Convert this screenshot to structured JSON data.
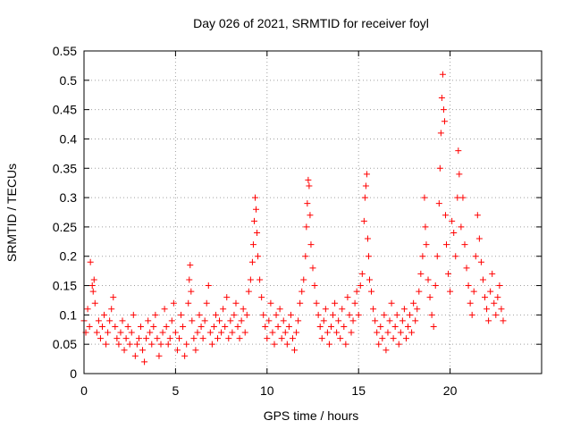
{
  "chart_data": {
    "type": "scatter",
    "title": "Day 026 of 2021, SRMTID for receiver foyl",
    "xlabel": "GPS time / hours",
    "ylabel": "SRMTID / TECUs",
    "xlim": [
      0,
      25
    ],
    "ylim": [
      0,
      0.55
    ],
    "x_ticks": [
      0,
      5,
      10,
      15,
      20
    ],
    "x_tick_labels": [
      "0",
      "5",
      "10",
      "15",
      "20"
    ],
    "y_ticks": [
      0,
      0.05,
      0.1,
      0.15,
      0.2,
      0.25,
      0.3,
      0.35,
      0.4,
      0.45,
      0.5,
      0.55
    ],
    "y_tick_labels": [
      "0",
      "0.05",
      "0.1",
      "0.15",
      "0.2",
      "0.25",
      "0.3",
      "0.35",
      "0.4",
      "0.45",
      "0.5",
      "0.55"
    ],
    "grid": true,
    "marker": "plus",
    "color": "#ff0000",
    "series": [
      {
        "name": "SRMTID",
        "points": [
          [
            0.0,
            0.09
          ],
          [
            0.1,
            0.07
          ],
          [
            0.2,
            0.11
          ],
          [
            0.3,
            0.08
          ],
          [
            0.35,
            0.19
          ],
          [
            0.45,
            0.15
          ],
          [
            0.5,
            0.14
          ],
          [
            0.55,
            0.16
          ],
          [
            0.6,
            0.12
          ],
          [
            0.7,
            0.07
          ],
          [
            0.8,
            0.09
          ],
          [
            0.9,
            0.06
          ],
          [
            1.0,
            0.08
          ],
          [
            1.1,
            0.1
          ],
          [
            1.2,
            0.05
          ],
          [
            1.3,
            0.07
          ],
          [
            1.4,
            0.09
          ],
          [
            1.5,
            0.11
          ],
          [
            1.6,
            0.13
          ],
          [
            1.7,
            0.08
          ],
          [
            1.8,
            0.06
          ],
          [
            1.9,
            0.05
          ],
          [
            2.0,
            0.07
          ],
          [
            2.1,
            0.09
          ],
          [
            2.2,
            0.04
          ],
          [
            2.3,
            0.06
          ],
          [
            2.4,
            0.08
          ],
          [
            2.5,
            0.05
          ],
          [
            2.6,
            0.07
          ],
          [
            2.7,
            0.1
          ],
          [
            2.8,
            0.03
          ],
          [
            2.9,
            0.05
          ],
          [
            3.0,
            0.06
          ],
          [
            3.1,
            0.08
          ],
          [
            3.2,
            0.04
          ],
          [
            3.3,
            0.02
          ],
          [
            3.4,
            0.06
          ],
          [
            3.5,
            0.09
          ],
          [
            3.6,
            0.07
          ],
          [
            3.7,
            0.05
          ],
          [
            3.8,
            0.08
          ],
          [
            3.9,
            0.1
          ],
          [
            4.0,
            0.06
          ],
          [
            4.1,
            0.03
          ],
          [
            4.2,
            0.05
          ],
          [
            4.3,
            0.07
          ],
          [
            4.4,
            0.11
          ],
          [
            4.5,
            0.08
          ],
          [
            4.6,
            0.05
          ],
          [
            4.7,
            0.06
          ],
          [
            4.8,
            0.09
          ],
          [
            4.9,
            0.12
          ],
          [
            5.0,
            0.07
          ],
          [
            5.1,
            0.04
          ],
          [
            5.2,
            0.06
          ],
          [
            5.3,
            0.1
          ],
          [
            5.4,
            0.08
          ],
          [
            5.5,
            0.03
          ],
          [
            5.6,
            0.05
          ],
          [
            5.7,
            0.12
          ],
          [
            5.75,
            0.16
          ],
          [
            5.8,
            0.185
          ],
          [
            5.85,
            0.14
          ],
          [
            5.9,
            0.09
          ],
          [
            6.0,
            0.06
          ],
          [
            6.1,
            0.04
          ],
          [
            6.2,
            0.07
          ],
          [
            6.3,
            0.1
          ],
          [
            6.4,
            0.08
          ],
          [
            6.5,
            0.06
          ],
          [
            6.6,
            0.09
          ],
          [
            6.7,
            0.12
          ],
          [
            6.8,
            0.15
          ],
          [
            6.9,
            0.07
          ],
          [
            7.0,
            0.05
          ],
          [
            7.1,
            0.08
          ],
          [
            7.2,
            0.1
          ],
          [
            7.3,
            0.06
          ],
          [
            7.4,
            0.09
          ],
          [
            7.5,
            0.07
          ],
          [
            7.6,
            0.11
          ],
          [
            7.7,
            0.08
          ],
          [
            7.8,
            0.13
          ],
          [
            7.9,
            0.06
          ],
          [
            8.0,
            0.09
          ],
          [
            8.1,
            0.07
          ],
          [
            8.2,
            0.1
          ],
          [
            8.3,
            0.12
          ],
          [
            8.4,
            0.08
          ],
          [
            8.5,
            0.06
          ],
          [
            8.6,
            0.09
          ],
          [
            8.7,
            0.11
          ],
          [
            8.8,
            0.07
          ],
          [
            8.9,
            0.1
          ],
          [
            9.0,
            0.14
          ],
          [
            9.1,
            0.16
          ],
          [
            9.2,
            0.19
          ],
          [
            9.25,
            0.22
          ],
          [
            9.3,
            0.26
          ],
          [
            9.35,
            0.3
          ],
          [
            9.4,
            0.28
          ],
          [
            9.45,
            0.24
          ],
          [
            9.5,
            0.2
          ],
          [
            9.6,
            0.16
          ],
          [
            9.7,
            0.13
          ],
          [
            9.8,
            0.1
          ],
          [
            9.9,
            0.08
          ],
          [
            10.0,
            0.06
          ],
          [
            10.1,
            0.09
          ],
          [
            10.2,
            0.12
          ],
          [
            10.3,
            0.07
          ],
          [
            10.4,
            0.05
          ],
          [
            10.5,
            0.1
          ],
          [
            10.6,
            0.08
          ],
          [
            10.7,
            0.11
          ],
          [
            10.8,
            0.06
          ],
          [
            10.9,
            0.09
          ],
          [
            11.0,
            0.07
          ],
          [
            11.1,
            0.05
          ],
          [
            11.2,
            0.08
          ],
          [
            11.3,
            0.1
          ],
          [
            11.4,
            0.06
          ],
          [
            11.5,
            0.04
          ],
          [
            11.6,
            0.07
          ],
          [
            11.7,
            0.09
          ],
          [
            11.8,
            0.12
          ],
          [
            11.9,
            0.14
          ],
          [
            12.0,
            0.16
          ],
          [
            12.1,
            0.2
          ],
          [
            12.15,
            0.25
          ],
          [
            12.2,
            0.29
          ],
          [
            12.25,
            0.33
          ],
          [
            12.3,
            0.32
          ],
          [
            12.35,
            0.27
          ],
          [
            12.4,
            0.22
          ],
          [
            12.5,
            0.18
          ],
          [
            12.6,
            0.15
          ],
          [
            12.7,
            0.12
          ],
          [
            12.8,
            0.1
          ],
          [
            12.9,
            0.08
          ],
          [
            13.0,
            0.06
          ],
          [
            13.1,
            0.09
          ],
          [
            13.2,
            0.11
          ],
          [
            13.3,
            0.07
          ],
          [
            13.4,
            0.05
          ],
          [
            13.5,
            0.08
          ],
          [
            13.6,
            0.1
          ],
          [
            13.7,
            0.12
          ],
          [
            13.8,
            0.07
          ],
          [
            13.9,
            0.09
          ],
          [
            14.0,
            0.06
          ],
          [
            14.1,
            0.11
          ],
          [
            14.2,
            0.08
          ],
          [
            14.3,
            0.05
          ],
          [
            14.4,
            0.13
          ],
          [
            14.5,
            0.1
          ],
          [
            14.6,
            0.07
          ],
          [
            14.7,
            0.09
          ],
          [
            14.8,
            0.12
          ],
          [
            14.9,
            0.14
          ],
          [
            15.0,
            0.1
          ],
          [
            15.1,
            0.15
          ],
          [
            15.2,
            0.17
          ],
          [
            15.3,
            0.26
          ],
          [
            15.35,
            0.3
          ],
          [
            15.4,
            0.32
          ],
          [
            15.45,
            0.34
          ],
          [
            15.5,
            0.23
          ],
          [
            15.55,
            0.2
          ],
          [
            15.6,
            0.16
          ],
          [
            15.7,
            0.14
          ],
          [
            15.8,
            0.11
          ],
          [
            15.9,
            0.09
          ],
          [
            16.0,
            0.07
          ],
          [
            16.1,
            0.05
          ],
          [
            16.2,
            0.08
          ],
          [
            16.3,
            0.06
          ],
          [
            16.4,
            0.1
          ],
          [
            16.5,
            0.04
          ],
          [
            16.6,
            0.07
          ],
          [
            16.7,
            0.09
          ],
          [
            16.8,
            0.12
          ],
          [
            16.9,
            0.06
          ],
          [
            17.0,
            0.08
          ],
          [
            17.1,
            0.1
          ],
          [
            17.2,
            0.05
          ],
          [
            17.3,
            0.07
          ],
          [
            17.4,
            0.09
          ],
          [
            17.5,
            0.11
          ],
          [
            17.6,
            0.06
          ],
          [
            17.7,
            0.08
          ],
          [
            17.8,
            0.1
          ],
          [
            17.9,
            0.07
          ],
          [
            18.0,
            0.12
          ],
          [
            18.1,
            0.09
          ],
          [
            18.2,
            0.11
          ],
          [
            18.3,
            0.14
          ],
          [
            18.4,
            0.17
          ],
          [
            18.5,
            0.2
          ],
          [
            18.6,
            0.3
          ],
          [
            18.65,
            0.25
          ],
          [
            18.7,
            0.22
          ],
          [
            18.8,
            0.16
          ],
          [
            18.9,
            0.13
          ],
          [
            19.0,
            0.1
          ],
          [
            19.1,
            0.08
          ],
          [
            19.2,
            0.15
          ],
          [
            19.3,
            0.2
          ],
          [
            19.4,
            0.29
          ],
          [
            19.45,
            0.35
          ],
          [
            19.5,
            0.41
          ],
          [
            19.55,
            0.47
          ],
          [
            19.6,
            0.51
          ],
          [
            19.65,
            0.45
          ],
          [
            19.7,
            0.43
          ],
          [
            19.75,
            0.27
          ],
          [
            19.8,
            0.22
          ],
          [
            19.9,
            0.17
          ],
          [
            20.0,
            0.14
          ],
          [
            20.1,
            0.26
          ],
          [
            20.2,
            0.24
          ],
          [
            20.3,
            0.2
          ],
          [
            20.4,
            0.3
          ],
          [
            20.45,
            0.38
          ],
          [
            20.5,
            0.34
          ],
          [
            20.6,
            0.25
          ],
          [
            20.7,
            0.3
          ],
          [
            20.8,
            0.22
          ],
          [
            20.9,
            0.18
          ],
          [
            21.0,
            0.15
          ],
          [
            21.1,
            0.12
          ],
          [
            21.2,
            0.1
          ],
          [
            21.3,
            0.14
          ],
          [
            21.4,
            0.2
          ],
          [
            21.5,
            0.27
          ],
          [
            21.6,
            0.23
          ],
          [
            21.7,
            0.19
          ],
          [
            21.8,
            0.16
          ],
          [
            21.9,
            0.13
          ],
          [
            22.0,
            0.11
          ],
          [
            22.1,
            0.09
          ],
          [
            22.2,
            0.14
          ],
          [
            22.3,
            0.17
          ],
          [
            22.4,
            0.12
          ],
          [
            22.5,
            0.1
          ],
          [
            22.6,
            0.13
          ],
          [
            22.7,
            0.15
          ],
          [
            22.8,
            0.11
          ],
          [
            22.9,
            0.09
          ]
        ]
      }
    ]
  }
}
